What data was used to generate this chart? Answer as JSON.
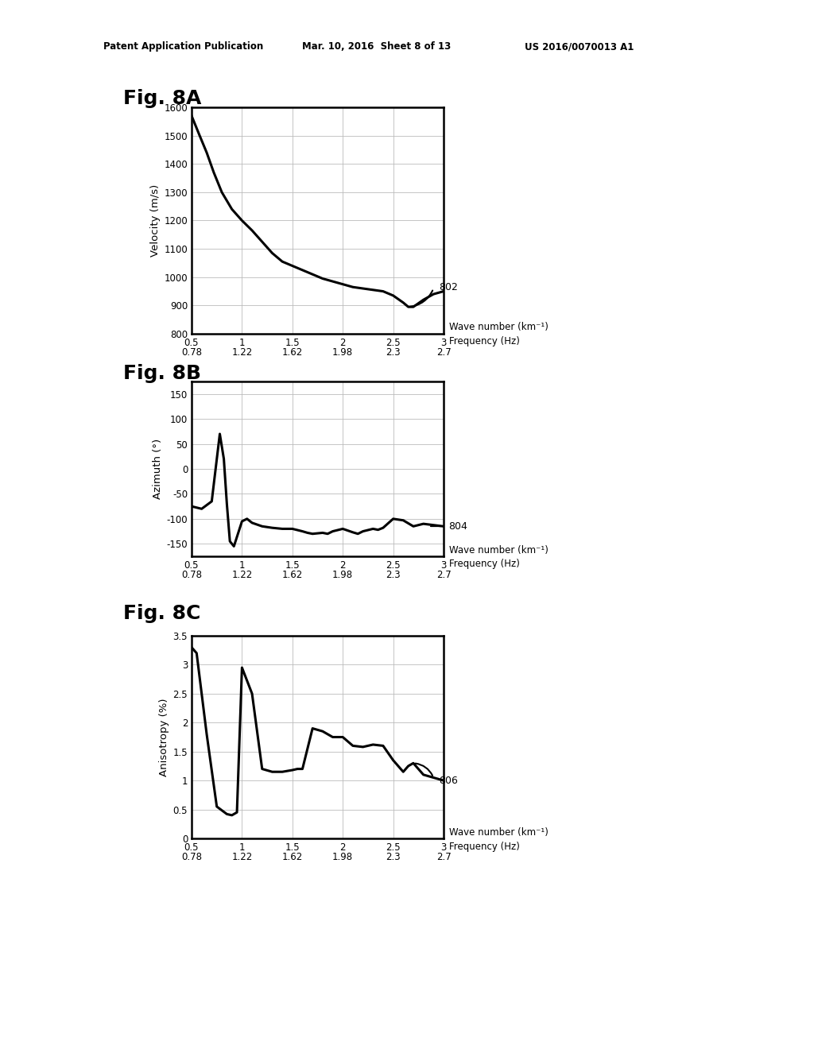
{
  "header_left": "Patent Application Publication",
  "header_mid": "Mar. 10, 2016  Sheet 8 of 13",
  "header_right": "US 2016/0070013 A1",
  "fig8A_title": "Fig. 8A",
  "fig8A_ylabel": "Velocity (m/s)",
  "fig8A_ylim": [
    800,
    1600
  ],
  "fig8A_yticks": [
    800,
    900,
    1000,
    1100,
    1200,
    1300,
    1400,
    1500,
    1600
  ],
  "fig8A_label": "802",
  "fig8A_x": [
    0.5,
    0.58,
    0.65,
    0.72,
    0.8,
    0.9,
    1.0,
    1.1,
    1.2,
    1.3,
    1.4,
    1.5,
    1.6,
    1.7,
    1.8,
    1.9,
    2.0,
    2.1,
    2.2,
    2.3,
    2.4,
    2.5,
    2.6,
    2.65,
    2.7,
    2.8,
    2.9,
    3.0
  ],
  "fig8A_y": [
    1570,
    1500,
    1440,
    1370,
    1300,
    1240,
    1200,
    1165,
    1125,
    1085,
    1055,
    1040,
    1025,
    1010,
    995,
    985,
    975,
    965,
    960,
    955,
    950,
    935,
    910,
    895,
    895,
    920,
    940,
    950
  ],
  "fig8B_title": "Fig. 8B",
  "fig8B_ylabel": "Azimuth (°)",
  "fig8B_ylim": [
    -175,
    175
  ],
  "fig8B_yticks": [
    -150,
    -100,
    -50,
    0,
    50,
    100,
    150
  ],
  "fig8B_label": "804",
  "fig8B_x": [
    0.5,
    0.6,
    0.7,
    0.78,
    0.82,
    0.85,
    0.88,
    0.92,
    0.96,
    1.0,
    1.05,
    1.1,
    1.2,
    1.3,
    1.4,
    1.5,
    1.6,
    1.65,
    1.7,
    1.8,
    1.85,
    1.9,
    2.0,
    2.1,
    2.15,
    2.2,
    2.3,
    2.35,
    2.4,
    2.5,
    2.6,
    2.7,
    2.8,
    3.0
  ],
  "fig8B_y": [
    -75,
    -80,
    -65,
    70,
    20,
    -70,
    -145,
    -155,
    -130,
    -105,
    -100,
    -108,
    -115,
    -118,
    -120,
    -120,
    -125,
    -128,
    -130,
    -128,
    -130,
    -125,
    -120,
    -127,
    -130,
    -125,
    -120,
    -122,
    -118,
    -100,
    -103,
    -115,
    -110,
    -115
  ],
  "fig8C_title": "Fig. 8C",
  "fig8C_ylabel": "Anisotropy (%)",
  "fig8C_ylim": [
    0,
    3.5
  ],
  "fig8C_yticks": [
    0,
    0.5,
    1.0,
    1.5,
    2.0,
    2.5,
    3.0,
    3.5
  ],
  "fig8C_label": "806",
  "fig8C_x": [
    0.5,
    0.55,
    0.65,
    0.75,
    0.85,
    0.9,
    0.95,
    1.0,
    1.1,
    1.2,
    1.3,
    1.4,
    1.5,
    1.55,
    1.6,
    1.7,
    1.8,
    1.9,
    2.0,
    2.1,
    2.2,
    2.3,
    2.4,
    2.5,
    2.6,
    2.65,
    2.7,
    2.8,
    2.9,
    3.0
  ],
  "fig8C_y": [
    3.3,
    3.2,
    1.8,
    0.55,
    0.42,
    0.4,
    0.45,
    2.95,
    2.5,
    1.2,
    1.15,
    1.15,
    1.18,
    1.2,
    1.2,
    1.9,
    1.85,
    1.75,
    1.75,
    1.6,
    1.58,
    1.62,
    1.6,
    1.35,
    1.15,
    1.25,
    1.3,
    1.1,
    1.05,
    1.0
  ],
  "xlim": [
    0.5,
    3.0
  ],
  "xticks_wn": [
    0.5,
    1.0,
    1.5,
    2.0,
    2.5,
    3.0
  ],
  "xtick_labels_wn": [
    "0.5",
    "1",
    "1.5",
    "2",
    "2.5",
    "3"
  ],
  "xtick_labels_freq": [
    "0.78",
    "1.22",
    "1.62",
    "1.98",
    "2.3",
    "2.7"
  ],
  "xlabel_wn": "Wave number (km⁻¹)",
  "xlabel_freq": "Frequency (Hz)",
  "line_color": "#000000",
  "line_width": 2.2,
  "grid_color": "#bbbbbb",
  "bg_color": "#ffffff"
}
